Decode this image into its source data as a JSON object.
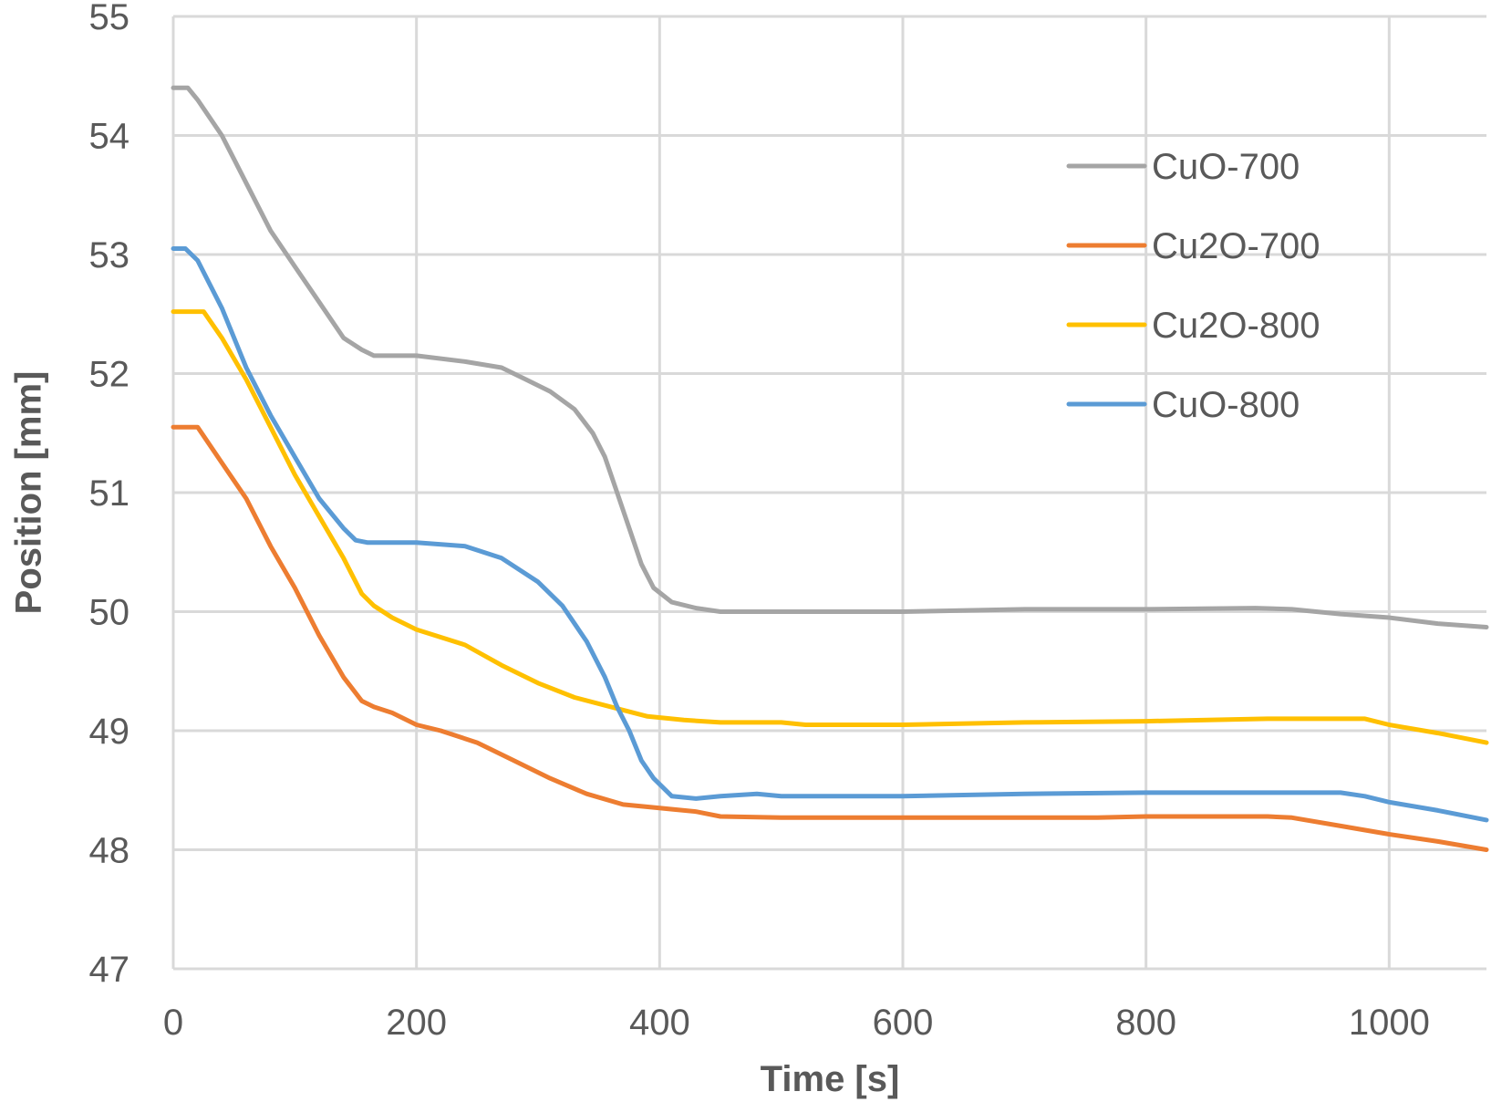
{
  "chart_data": {
    "type": "line",
    "xlabel": "Time [s]",
    "ylabel": "Position [mm]",
    "xlim": [
      0,
      1080
    ],
    "ylim": [
      47,
      55
    ],
    "xticks": [
      0,
      200,
      400,
      600,
      800,
      1000
    ],
    "yticks": [
      47,
      48,
      49,
      50,
      51,
      52,
      53,
      54,
      55
    ],
    "grid": true,
    "legend_position": "top-right",
    "series": [
      {
        "name": "CuO-700",
        "color": "#a5a5a5",
        "x": [
          0,
          12,
          20,
          40,
          60,
          80,
          100,
          120,
          140,
          155,
          165,
          200,
          240,
          270,
          290,
          310,
          330,
          345,
          355,
          365,
          375,
          385,
          395,
          410,
          430,
          450,
          500,
          600,
          700,
          800,
          890,
          920,
          960,
          1000,
          1040,
          1080
        ],
        "y": [
          54.4,
          54.4,
          54.3,
          54.0,
          53.6,
          53.2,
          52.9,
          52.6,
          52.3,
          52.2,
          52.15,
          52.15,
          52.1,
          52.05,
          51.95,
          51.85,
          51.7,
          51.5,
          51.3,
          51.0,
          50.7,
          50.4,
          50.2,
          50.08,
          50.03,
          50.0,
          50.0,
          50.0,
          50.02,
          50.02,
          50.03,
          50.02,
          49.98,
          49.95,
          49.9,
          49.87
        ]
      },
      {
        "name": "Cu2O-700",
        "color": "#ed7d31",
        "x": [
          0,
          20,
          40,
          60,
          80,
          100,
          120,
          140,
          155,
          165,
          180,
          200,
          220,
          250,
          280,
          310,
          340,
          370,
          400,
          430,
          450,
          500,
          600,
          700,
          760,
          800,
          900,
          920,
          960,
          1000,
          1040,
          1080
        ],
        "y": [
          51.55,
          51.55,
          51.25,
          50.95,
          50.55,
          50.2,
          49.8,
          49.45,
          49.25,
          49.2,
          49.15,
          49.05,
          49.0,
          48.9,
          48.75,
          48.6,
          48.47,
          48.38,
          48.35,
          48.32,
          48.28,
          48.27,
          48.27,
          48.27,
          48.27,
          48.28,
          48.28,
          48.27,
          48.2,
          48.13,
          48.07,
          48.0
        ]
      },
      {
        "name": "Cu2O-800",
        "color": "#ffc000",
        "x": [
          0,
          25,
          40,
          60,
          80,
          100,
          120,
          140,
          155,
          165,
          180,
          200,
          240,
          270,
          300,
          330,
          360,
          390,
          420,
          450,
          500,
          520,
          600,
          700,
          800,
          900,
          980,
          1000,
          1040,
          1080
        ],
        "y": [
          52.52,
          52.52,
          52.3,
          51.95,
          51.55,
          51.15,
          50.8,
          50.45,
          50.15,
          50.05,
          49.95,
          49.85,
          49.72,
          49.55,
          49.4,
          49.28,
          49.2,
          49.12,
          49.09,
          49.07,
          49.07,
          49.05,
          49.05,
          49.07,
          49.08,
          49.1,
          49.1,
          49.05,
          48.98,
          48.9
        ]
      },
      {
        "name": "CuO-800",
        "color": "#5b9bd5",
        "x": [
          0,
          10,
          20,
          40,
          60,
          80,
          100,
          120,
          140,
          150,
          160,
          200,
          240,
          270,
          300,
          320,
          340,
          355,
          365,
          375,
          385,
          395,
          410,
          430,
          450,
          480,
          500,
          600,
          700,
          800,
          900,
          960,
          980,
          1000,
          1040,
          1080
        ],
        "y": [
          53.05,
          53.05,
          52.95,
          52.55,
          52.05,
          51.65,
          51.3,
          50.95,
          50.7,
          50.6,
          50.58,
          50.58,
          50.55,
          50.45,
          50.25,
          50.05,
          49.75,
          49.45,
          49.2,
          49.0,
          48.75,
          48.6,
          48.45,
          48.43,
          48.45,
          48.47,
          48.45,
          48.45,
          48.47,
          48.48,
          48.48,
          48.48,
          48.45,
          48.4,
          48.33,
          48.25
        ]
      }
    ]
  }
}
